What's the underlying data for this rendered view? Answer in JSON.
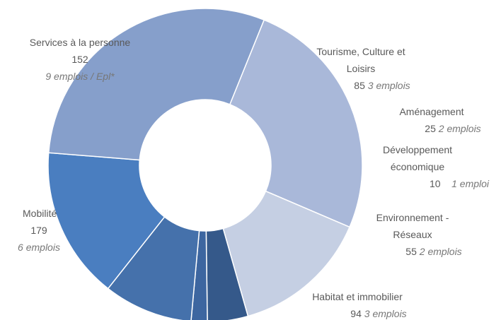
{
  "chart_data": {
    "type": "donut",
    "categories": [
      "Services à la personne",
      "Tourisme, Culture et Loisirs",
      "Aménagement",
      "Développement économique",
      "Environnement - Réseaux",
      "Habitat et immobilier",
      "Mobilité"
    ],
    "values": [
      152,
      85,
      25,
      10,
      55,
      94,
      179
    ],
    "notes": [
      "9 emplois / Epl*",
      "3 emplois",
      "2 emplois",
      "1 emploi",
      "2 emplois",
      "3 emplois",
      "6 emplois"
    ],
    "colors": [
      "#a9b8d9",
      "#c5cfe3",
      "#35598a",
      "#3d66a0",
      "#4571ab",
      "#4a7ec0",
      "#869fcb"
    ]
  }
}
